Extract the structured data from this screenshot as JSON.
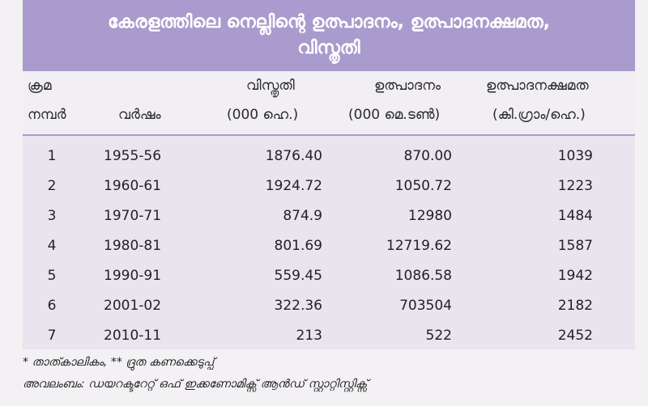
{
  "title": {
    "line1": "കേരളത്തിലെ നെല്ലിന്റെ ഉത്പാദനം, ഉത്പാദനക്ഷമത,",
    "line2": "വിസ്തൃതി"
  },
  "columns": {
    "num_line1": "ക്രമ",
    "num_line2": "നമ്പർ",
    "year": "വർഷം",
    "area_line1": "വിസ്തൃതി",
    "area_line2": "(000 ഹെ.)",
    "prod_line1": "ഉത്പാദനം",
    "prod_line2": "(000 മെ.ടൺ)",
    "yield_line1": "ഉത്പാദനക്ഷമത",
    "yield_line2": "(കി.ഗ്രാം/ഹെ.)"
  },
  "rows": [
    {
      "num": "1",
      "year": "1955-56",
      "area": "1876.40",
      "production": "870.00",
      "yield": "1039"
    },
    {
      "num": "2",
      "year": "1960-61",
      "area": "1924.72",
      "production": "1050.72",
      "yield": "1223"
    },
    {
      "num": "3",
      "year": "1970-71",
      "area": "874.9",
      "production": "12980",
      "yield": "1484"
    },
    {
      "num": "4",
      "year": "1980-81",
      "area": "801.69",
      "production": "12719.62",
      "yield": "1587"
    },
    {
      "num": "5",
      "year": "1990-91",
      "area": "559.45",
      "production": "1086.58",
      "yield": "1942"
    },
    {
      "num": "6",
      "year": "2001-02",
      "area": "322.36",
      "production": "703504",
      "yield": "2182"
    },
    {
      "num": "7",
      "year": "2010-11",
      "area": "213",
      "production": "522",
      "yield": "2452"
    }
  ],
  "footnote": "* താത്കാലികം, ** ദ്രുത കണക്കെടുപ്പ്",
  "source": "അവലംബം: ഡയറക്ടറേറ്റ് ഒഫ് ഇക്കണോമിക്സ് ആൻഡ് സ്റ്റാറ്റിസ്റ്റിക്സ്",
  "colors": {
    "title_band": "#a99bcd",
    "title_text": "#ffffff",
    "table_body": "#eae4ef",
    "header_bg": "#f2eff4"
  }
}
